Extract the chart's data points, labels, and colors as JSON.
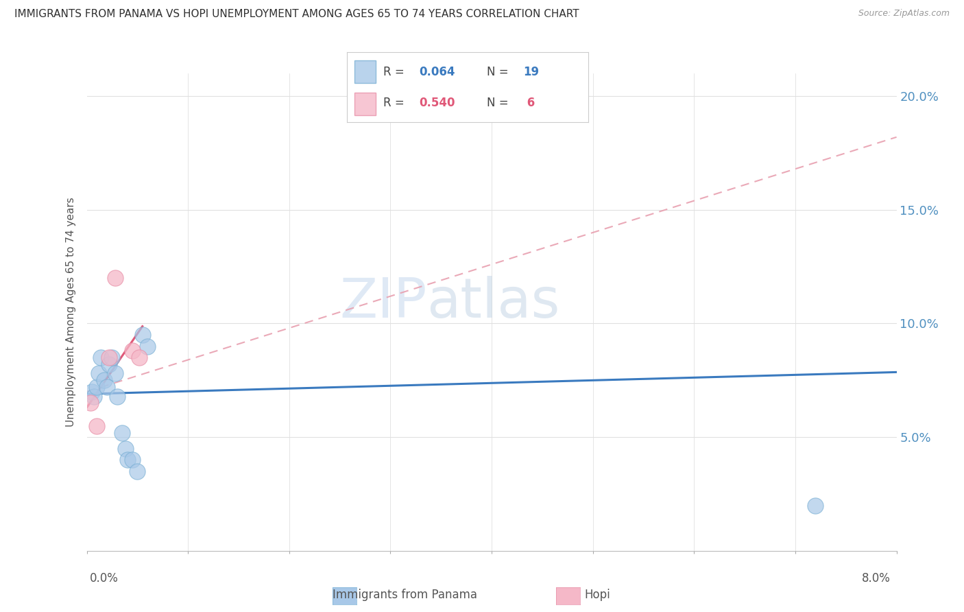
{
  "title": "IMMIGRANTS FROM PANAMA VS HOPI UNEMPLOYMENT AMONG AGES 65 TO 74 YEARS CORRELATION CHART",
  "source": "Source: ZipAtlas.com",
  "ylabel": "Unemployment Among Ages 65 to 74 years",
  "legend_panama": "Immigrants from Panama",
  "legend_hopi": "Hopi",
  "r_panama": "0.064",
  "n_panama": "19",
  "r_hopi": "0.540",
  "n_hopi": "6",
  "watermark_zip": "ZIP",
  "watermark_atlas": "atlas",
  "xlim": [
    0.0,
    8.0
  ],
  "ylim": [
    0.0,
    21.0
  ],
  "yticks": [
    5.0,
    10.0,
    15.0,
    20.0
  ],
  "xticks": [
    0.0,
    1.0,
    2.0,
    3.0,
    4.0,
    5.0,
    6.0,
    7.0,
    8.0
  ],
  "panama_x": [
    0.05,
    0.07,
    0.1,
    0.12,
    0.14,
    0.17,
    0.2,
    0.22,
    0.25,
    0.28,
    0.3,
    0.35,
    0.38,
    0.4,
    0.45,
    0.5,
    0.55,
    0.6,
    7.2
  ],
  "panama_y": [
    7.0,
    6.8,
    7.2,
    7.8,
    8.5,
    7.5,
    7.2,
    8.2,
    8.5,
    7.8,
    6.8,
    5.2,
    4.5,
    4.0,
    4.0,
    3.5,
    9.5,
    9.0,
    2.0
  ],
  "hopi_x": [
    0.04,
    0.1,
    0.22,
    0.28,
    0.45,
    0.52
  ],
  "hopi_y": [
    6.5,
    5.5,
    8.5,
    12.0,
    8.8,
    8.5
  ],
  "blue_color": "#a8c8e8",
  "blue_edge_color": "#7ab0d4",
  "pink_color": "#f5b8c8",
  "pink_edge_color": "#e890a8",
  "blue_line_color": "#3a7abf",
  "pink_line_color": "#e05878",
  "dashed_line_color": "#e8a0b0",
  "bg_color": "#ffffff",
  "grid_color": "#e0e0e0",
  "title_color": "#303030",
  "right_tick_color": "#5090c0"
}
